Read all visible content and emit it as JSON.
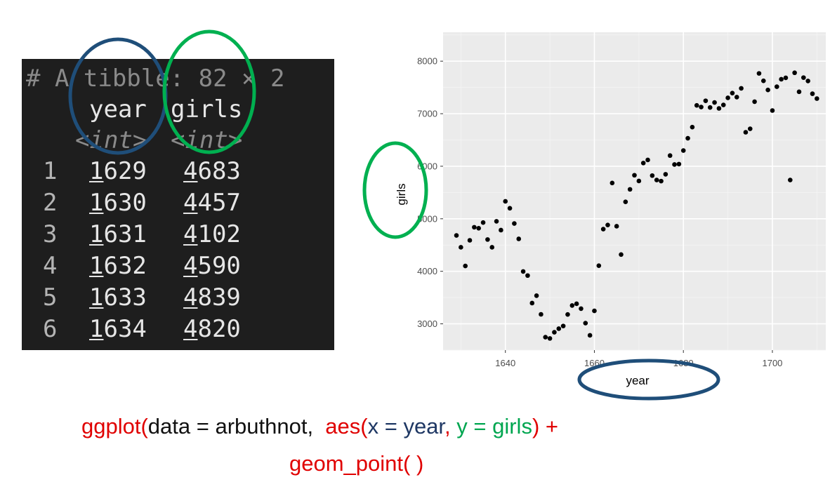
{
  "console": {
    "header": "# A tibble: 82 × 2",
    "columns": [
      "year",
      "girls"
    ],
    "types": [
      "<int>",
      "<int>"
    ],
    "rows": [
      {
        "index": "1",
        "year_first": "1",
        "year_rest": "629",
        "girls_first": "4",
        "girls_rest": "683"
      },
      {
        "index": "2",
        "year_first": "1",
        "year_rest": "630",
        "girls_first": "4",
        "girls_rest": "457"
      },
      {
        "index": "3",
        "year_first": "1",
        "year_rest": "631",
        "girls_first": "4",
        "girls_rest": "102"
      },
      {
        "index": "4",
        "year_first": "1",
        "year_rest": "632",
        "girls_first": "4",
        "girls_rest": "590"
      },
      {
        "index": "5",
        "year_first": "1",
        "year_rest": "633",
        "girls_first": "4",
        "girls_rest": "839"
      },
      {
        "index": "6",
        "year_first": "1",
        "year_rest": "634",
        "girls_first": "4",
        "girls_rest": "820"
      }
    ]
  },
  "colors": {
    "highlight_blue": "#1f4e79",
    "highlight_green": "#00b050",
    "code_red": "#e00000",
    "code_navy": "#1f3864",
    "code_green": "#00a650",
    "panel_bg": "#ebebeb"
  },
  "chart_data": {
    "type": "scatter",
    "xlabel": "year",
    "ylabel": "girls",
    "xlim": [
      1626,
      1712
    ],
    "ylim": [
      2500,
      8550
    ],
    "x_ticks": [
      1640,
      1660,
      1680,
      1700
    ],
    "y_ticks": [
      3000,
      4000,
      5000,
      6000,
      7000,
      8000
    ],
    "grid": true,
    "points": [
      [
        1629,
        4683
      ],
      [
        1630,
        4457
      ],
      [
        1631,
        4102
      ],
      [
        1632,
        4590
      ],
      [
        1633,
        4839
      ],
      [
        1634,
        4820
      ],
      [
        1635,
        4928
      ],
      [
        1636,
        4605
      ],
      [
        1637,
        4457
      ],
      [
        1638,
        4952
      ],
      [
        1639,
        4784
      ],
      [
        1640,
        5332
      ],
      [
        1641,
        5200
      ],
      [
        1642,
        4910
      ],
      [
        1643,
        4617
      ],
      [
        1644,
        3997
      ],
      [
        1645,
        3919
      ],
      [
        1646,
        3395
      ],
      [
        1647,
        3536
      ],
      [
        1648,
        3181
      ],
      [
        1649,
        2746
      ],
      [
        1650,
        2722
      ],
      [
        1651,
        2840
      ],
      [
        1652,
        2908
      ],
      [
        1653,
        2959
      ],
      [
        1654,
        3179
      ],
      [
        1655,
        3349
      ],
      [
        1656,
        3382
      ],
      [
        1657,
        3289
      ],
      [
        1658,
        3013
      ],
      [
        1659,
        2781
      ],
      [
        1660,
        3247
      ],
      [
        1661,
        4107
      ],
      [
        1662,
        4803
      ],
      [
        1663,
        4881
      ],
      [
        1664,
        5681
      ],
      [
        1665,
        4858
      ],
      [
        1666,
        4319
      ],
      [
        1667,
        5322
      ],
      [
        1668,
        5560
      ],
      [
        1669,
        5829
      ],
      [
        1670,
        5719
      ],
      [
        1671,
        6061
      ],
      [
        1672,
        6120
      ],
      [
        1673,
        5822
      ],
      [
        1674,
        5738
      ],
      [
        1675,
        5717
      ],
      [
        1676,
        5847
      ],
      [
        1677,
        6203
      ],
      [
        1678,
        6033
      ],
      [
        1679,
        6041
      ],
      [
        1680,
        6299
      ],
      [
        1681,
        6533
      ],
      [
        1682,
        6744
      ],
      [
        1683,
        7158
      ],
      [
        1684,
        7127
      ],
      [
        1685,
        7246
      ],
      [
        1686,
        7119
      ],
      [
        1687,
        7214
      ],
      [
        1688,
        7101
      ],
      [
        1689,
        7167
      ],
      [
        1690,
        7302
      ],
      [
        1691,
        7392
      ],
      [
        1692,
        7316
      ],
      [
        1693,
        7483
      ],
      [
        1694,
        6647
      ],
      [
        1695,
        6713
      ],
      [
        1696,
        7229
      ],
      [
        1697,
        7767
      ],
      [
        1698,
        7626
      ],
      [
        1699,
        7452
      ],
      [
        1700,
        7061
      ],
      [
        1701,
        7514
      ],
      [
        1702,
        7656
      ],
      [
        1703,
        7683
      ],
      [
        1704,
        5738
      ],
      [
        1705,
        7779
      ],
      [
        1706,
        7417
      ],
      [
        1707,
        7687
      ],
      [
        1708,
        7623
      ],
      [
        1709,
        7380
      ],
      [
        1710,
        7288
      ]
    ]
  },
  "code": {
    "line1_fn": "ggplot(",
    "line1_data": "data = arbuthnot,  ",
    "line1_aes": "aes(",
    "line1_x": "x = year",
    "line1_comma": ", ",
    "line1_y": "y = girls",
    "line1_close": ") +",
    "line2": "geom_point( )"
  }
}
